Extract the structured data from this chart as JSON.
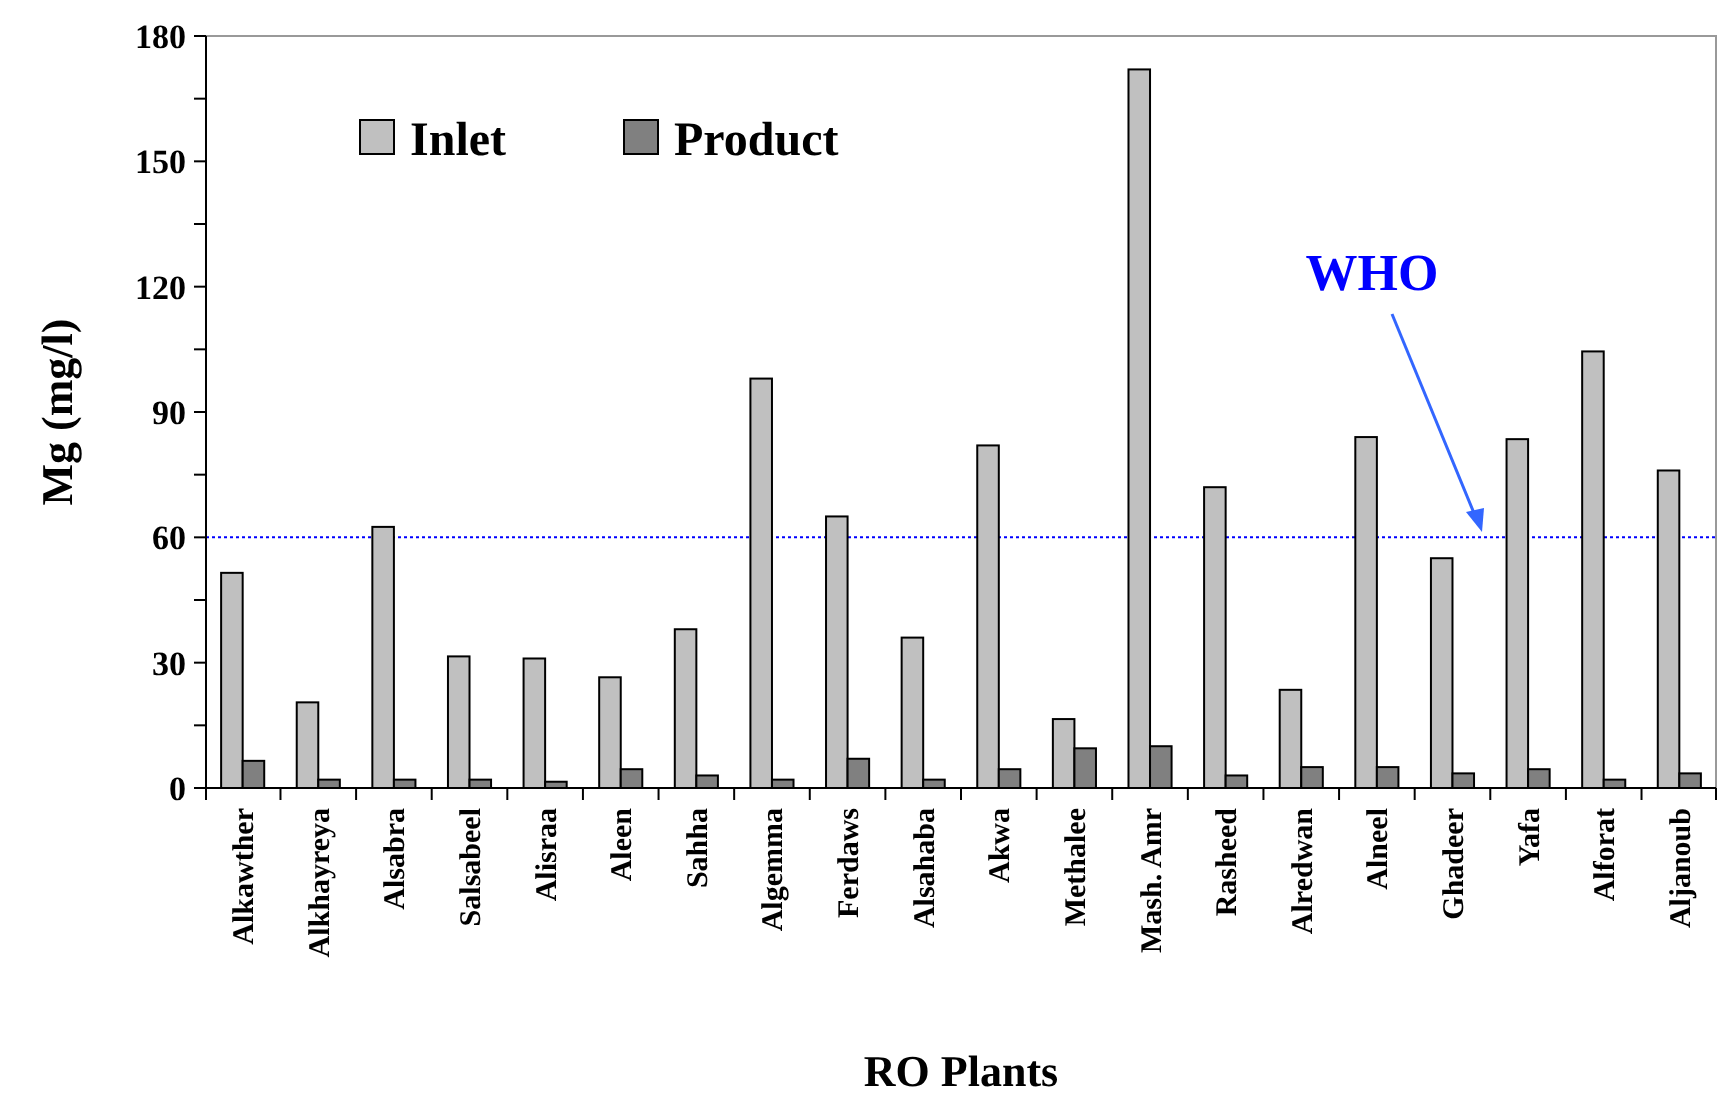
{
  "chart_data": {
    "type": "bar",
    "xlabel": "RO Plants",
    "ylabel": "Mg (mg/l)",
    "categories": [
      "Alkawther",
      "Alkhayreya",
      "Alsabra",
      "Salsabeel",
      "Alisraa",
      "Aleen",
      "Sahha",
      "Algemma",
      "Ferdaws",
      "Alsahaba",
      "Akwa",
      "Methalee",
      "Mash. Amr",
      "Rasheed",
      "Alredwan",
      "Alneel",
      "Ghadeer",
      "Yafa",
      "Alforat",
      "Aljanoub"
    ],
    "series": [
      {
        "name": "Inlet",
        "color": "#c0c0c0",
        "values": [
          51.5,
          20.5,
          62.5,
          31.5,
          31,
          26.5,
          38,
          98,
          65,
          36,
          82,
          16.5,
          172,
          72,
          23.5,
          84,
          55,
          83.5,
          104.5,
          76
        ]
      },
      {
        "name": "Product",
        "color": "#808080",
        "values": [
          6.5,
          2,
          2,
          2,
          1.5,
          4.5,
          3,
          2,
          7,
          2,
          4.5,
          9.5,
          10,
          3,
          5,
          5,
          3.5,
          4.5,
          2,
          3.5
        ]
      }
    ],
    "ylim": [
      0,
      180
    ],
    "yticks": [
      0,
      {
        "value": 15,
        "label": null
      },
      30,
      {
        "value": 45,
        "label": null
      },
      60,
      {
        "value": 75,
        "label": null
      },
      90,
      {
        "value": 105,
        "label": null
      },
      120,
      {
        "value": 135,
        "label": null
      },
      150,
      {
        "value": 165,
        "label": null
      },
      180
    ],
    "ref_lines": [
      {
        "axis": "y",
        "value": 60,
        "label": "WHO",
        "color": "#0000ff",
        "line_style": "dotted"
      }
    ],
    "legend": "top left",
    "grid": false
  }
}
